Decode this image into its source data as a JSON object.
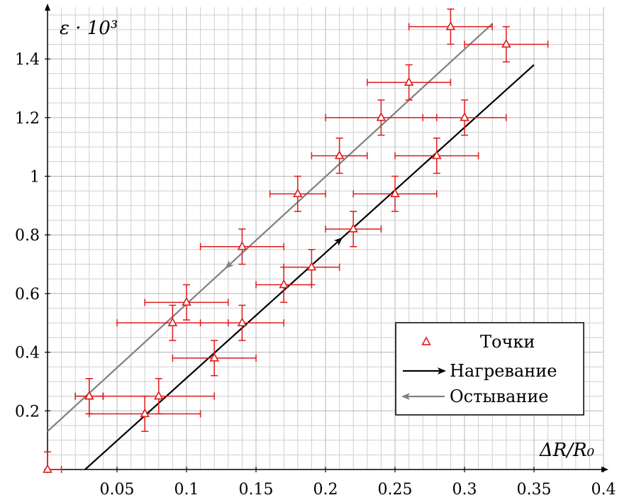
{
  "chart_data": {
    "type": "scatter",
    "xlabel": "ΔR/R₀",
    "ylabel": "ε · 10³",
    "xlim": [
      0,
      0.4
    ],
    "ylim": [
      0,
      1.55
    ],
    "x_ticks": [
      "0.05",
      "0.1",
      "0.15",
      "0.2",
      "0.25",
      "0.3",
      "0.35",
      "0.4"
    ],
    "y_ticks": [
      "0.2",
      "0.4",
      "0.6",
      "0.8",
      "1",
      "1.2",
      "1.4"
    ],
    "grid": true,
    "legend_position": "bottom-right",
    "series": [
      {
        "name": "Точки",
        "kind": "points",
        "marker": "triangle",
        "color": "#e0191b",
        "points": [
          {
            "x": 0.0,
            "y": 0.0,
            "xerr": 0.01,
            "yerr": 0.06
          },
          {
            "x": 0.03,
            "y": 0.25,
            "xerr": 0.01,
            "yerr": 0.06
          },
          {
            "x": 0.03,
            "y": 0.25,
            "xerr": 0.01,
            "yerr": 0.06
          },
          {
            "x": 0.07,
            "y": 0.19,
            "xerr": 0.04,
            "yerr": 0.06
          },
          {
            "x": 0.08,
            "y": 0.25,
            "xerr": 0.04,
            "yerr": 0.06
          },
          {
            "x": 0.09,
            "y": 0.5,
            "xerr": 0.04,
            "yerr": 0.06
          },
          {
            "x": 0.1,
            "y": 0.57,
            "xerr": 0.03,
            "yerr": 0.06
          },
          {
            "x": 0.12,
            "y": 0.38,
            "xerr": 0.03,
            "yerr": 0.06
          },
          {
            "x": 0.14,
            "y": 0.5,
            "xerr": 0.03,
            "yerr": 0.06
          },
          {
            "x": 0.14,
            "y": 0.76,
            "xerr": 0.03,
            "yerr": 0.06
          },
          {
            "x": 0.17,
            "y": 0.63,
            "xerr": 0.02,
            "yerr": 0.06
          },
          {
            "x": 0.18,
            "y": 0.94,
            "xerr": 0.02,
            "yerr": 0.06
          },
          {
            "x": 0.19,
            "y": 0.69,
            "xerr": 0.02,
            "yerr": 0.06
          },
          {
            "x": 0.21,
            "y": 1.07,
            "xerr": 0.02,
            "yerr": 0.06
          },
          {
            "x": 0.22,
            "y": 0.82,
            "xerr": 0.02,
            "yerr": 0.06
          },
          {
            "x": 0.24,
            "y": 1.2,
            "xerr": 0.04,
            "yerr": 0.06
          },
          {
            "x": 0.25,
            "y": 0.94,
            "xerr": 0.03,
            "yerr": 0.06
          },
          {
            "x": 0.26,
            "y": 1.32,
            "xerr": 0.03,
            "yerr": 0.06
          },
          {
            "x": 0.28,
            "y": 1.07,
            "xerr": 0.03,
            "yerr": 0.06
          },
          {
            "x": 0.29,
            "y": 1.51,
            "xerr": 0.03,
            "yerr": 0.06
          },
          {
            "x": 0.3,
            "y": 1.2,
            "xerr": 0.03,
            "yerr": 0.06
          },
          {
            "x": 0.33,
            "y": 1.45,
            "xerr": 0.03,
            "yerr": 0.06
          }
        ]
      },
      {
        "name": "Нагревание",
        "kind": "line",
        "color": "#000000",
        "x": [
          0.027,
          0.35
        ],
        "y": [
          0.0,
          1.38
        ],
        "arrow_at_x": 0.21
      },
      {
        "name": "Остывание",
        "kind": "line",
        "color": "#808080",
        "x": [
          0.0,
          0.32
        ],
        "y": [
          0.13,
          1.52
        ],
        "arrow_at_x": 0.13
      }
    ]
  }
}
